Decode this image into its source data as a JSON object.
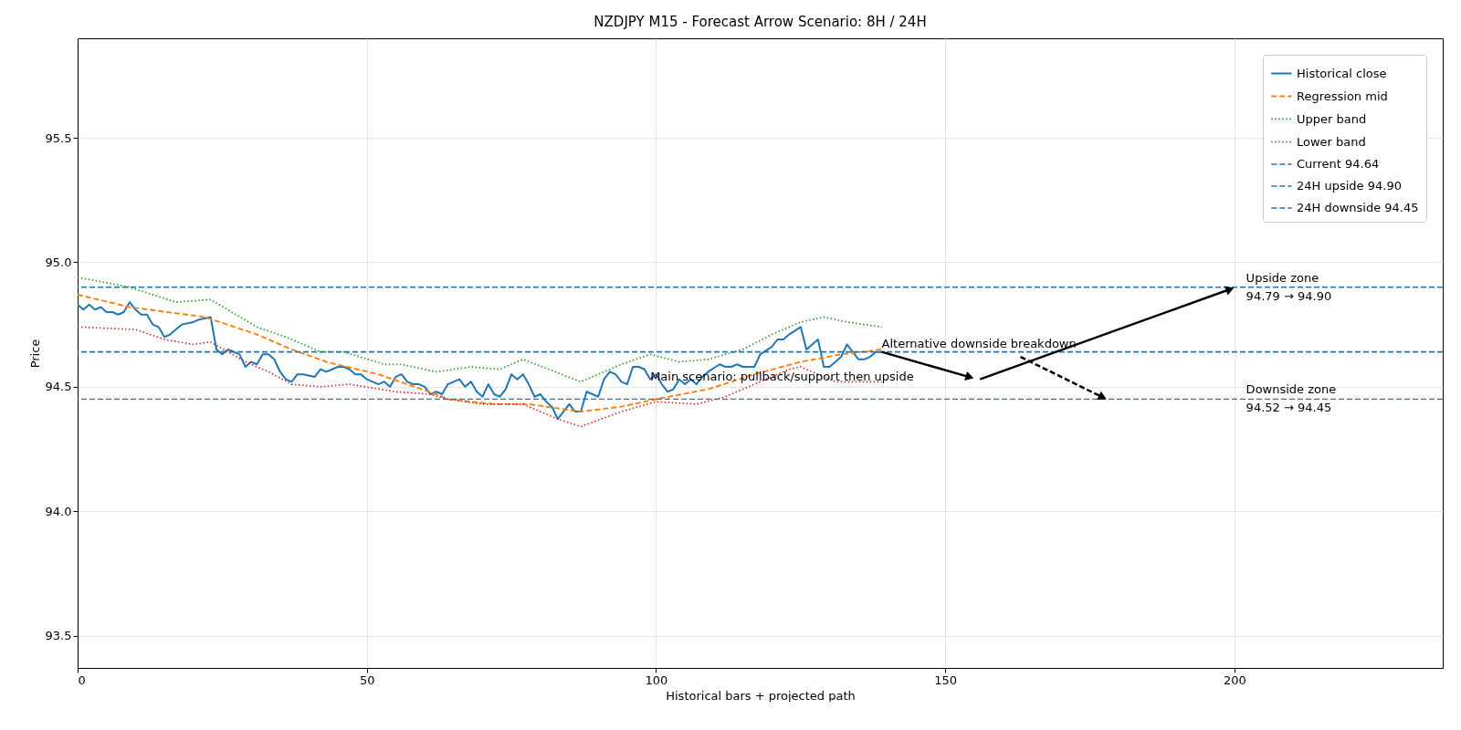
{
  "chart_data": {
    "type": "line",
    "title": "NZDJPY M15 - Forecast Arrow Scenario: 8H / 24H",
    "xlabel": "Historical bars + projected path",
    "ylabel": "Price",
    "xlim": [
      0,
      236
    ],
    "xticks": [
      0,
      50,
      100,
      150,
      200
    ],
    "ylim": [
      93.37,
      95.9
    ],
    "yticks": [
      93.5,
      {
        "value": 94,
        "label": "94.0"
      },
      94.5,
      {
        "value": 95,
        "label": "95.0"
      },
      95.5
    ],
    "grid": true,
    "legend": "top right",
    "series": [
      {
        "name": "Historical close",
        "color": "#1f77b4",
        "line_style": "solid",
        "x": [
          0,
          1,
          2,
          3,
          4,
          5,
          6,
          7,
          8,
          9,
          10,
          11,
          12,
          13,
          14,
          15,
          16,
          17,
          18,
          20,
          21,
          23,
          24,
          25,
          26,
          27,
          28,
          29,
          30,
          31,
          32,
          33,
          34,
          35,
          36,
          37,
          38,
          39,
          41,
          42,
          43,
          44,
          45,
          46,
          47,
          48,
          49,
          50,
          51,
          52,
          53,
          54,
          55,
          56,
          57,
          58,
          59,
          60,
          61,
          62,
          63,
          64,
          65,
          66,
          67,
          68,
          69,
          70,
          71,
          72,
          73,
          74,
          75,
          76,
          77,
          78,
          79,
          80,
          81,
          82,
          83,
          84,
          85,
          86,
          87,
          88,
          89,
          90,
          91,
          92,
          93,
          94,
          95,
          96,
          97,
          98,
          99,
          100,
          101,
          102,
          103,
          104,
          105,
          106,
          107,
          108,
          109,
          111,
          112,
          113,
          114,
          115,
          116,
          117,
          118,
          120,
          121,
          122,
          123,
          125,
          126,
          127,
          128,
          129,
          130,
          132,
          133,
          134,
          135,
          136,
          137,
          138,
          139
        ],
        "values": [
          94.83,
          94.81,
          94.83,
          94.81,
          94.82,
          94.8,
          94.8,
          94.79,
          94.8,
          94.84,
          94.81,
          94.79,
          94.79,
          94.75,
          94.74,
          94.7,
          94.71,
          94.73,
          94.75,
          94.76,
          94.77,
          94.78,
          94.65,
          94.63,
          94.65,
          94.64,
          94.63,
          94.58,
          94.6,
          94.59,
          94.63,
          94.63,
          94.61,
          94.56,
          94.53,
          94.52,
          94.55,
          94.55,
          94.54,
          94.57,
          94.56,
          94.57,
          94.58,
          94.58,
          94.57,
          94.55,
          94.55,
          94.53,
          94.52,
          94.51,
          94.52,
          94.5,
          94.54,
          94.55,
          94.52,
          94.51,
          94.51,
          94.5,
          94.47,
          94.48,
          94.47,
          94.51,
          94.52,
          94.53,
          94.5,
          94.52,
          94.48,
          94.46,
          94.51,
          94.47,
          94.46,
          94.49,
          94.55,
          94.53,
          94.55,
          94.51,
          94.46,
          94.47,
          94.44,
          94.42,
          94.37,
          94.4,
          94.43,
          94.4,
          94.4,
          94.48,
          94.47,
          94.46,
          94.53,
          94.56,
          94.55,
          94.52,
          94.51,
          94.58,
          94.58,
          94.57,
          94.53,
          94.55,
          94.51,
          94.48,
          94.49,
          94.53,
          94.51,
          94.53,
          94.51,
          94.54,
          94.56,
          94.59,
          94.58,
          94.58,
          94.59,
          94.58,
          94.58,
          94.58,
          94.63,
          94.66,
          94.69,
          94.69,
          94.71,
          94.74,
          94.65,
          94.67,
          94.69,
          94.58,
          94.58,
          94.62,
          94.67,
          94.64,
          94.61,
          94.61,
          94.62,
          94.64,
          94.64
        ]
      },
      {
        "name": "Regression mid",
        "color": "#ff7f0e",
        "line_style": "dashed",
        "x": [
          0,
          9,
          22,
          31,
          37,
          43,
          52,
          62,
          64,
          72,
          78,
          87,
          94,
          100,
          109,
          117,
          125,
          132,
          139
        ],
        "values": [
          94.87,
          94.82,
          94.78,
          94.71,
          94.65,
          94.6,
          94.55,
          94.47,
          94.45,
          94.43,
          94.43,
          94.4,
          94.42,
          94.45,
          94.49,
          94.55,
          94.6,
          94.63,
          94.65
        ]
      },
      {
        "name": "Upper band",
        "color": "#2ca02c",
        "line_style": "dotted",
        "x": [
          0,
          9,
          17,
          23,
          31,
          36,
          42,
          46,
          53,
          56,
          62,
          68,
          73,
          77,
          87,
          94,
          99,
          104,
          109,
          115,
          120,
          125,
          129,
          133,
          139
        ],
        "values": [
          94.94,
          94.9,
          94.84,
          94.85,
          94.74,
          94.7,
          94.64,
          94.64,
          94.59,
          94.59,
          94.56,
          94.58,
          94.57,
          94.61,
          94.52,
          94.59,
          94.63,
          94.6,
          94.61,
          94.65,
          94.71,
          94.76,
          94.78,
          94.76,
          94.74
        ]
      },
      {
        "name": "Lower band",
        "color": "#d62728",
        "line_style": "dotted",
        "x": [
          0,
          10,
          15,
          20,
          23,
          29,
          33,
          37,
          42,
          47,
          55,
          61,
          64,
          70,
          77,
          83,
          87,
          94,
          100,
          107,
          112,
          117,
          123,
          125,
          131,
          139
        ],
        "values": [
          94.74,
          94.73,
          94.69,
          94.67,
          94.68,
          94.6,
          94.56,
          94.51,
          94.5,
          94.51,
          94.48,
          94.47,
          94.45,
          94.43,
          94.43,
          94.37,
          94.34,
          94.4,
          94.44,
          94.43,
          94.46,
          94.51,
          94.57,
          94.58,
          94.52,
          94.52
        ]
      },
      {
        "color": "#000000",
        "line_style": "solid",
        "x": [
          139,
          154
        ],
        "values": [
          94.64,
          94.54
        ]
      },
      {
        "color": "#000000",
        "line_style": "solid",
        "x": [
          156,
          199
        ],
        "values": [
          94.53,
          94.89
        ]
      },
      {
        "color": "#000000",
        "line_style": "dashed",
        "x": [
          163,
          177
        ],
        "values": [
          94.62,
          94.46
        ]
      }
    ],
    "ref_lines": [
      {
        "axis": "y",
        "value": 94.64,
        "label": "Current 94.64",
        "color": "#1f77b4",
        "line_style": "dashed"
      },
      {
        "axis": "y",
        "value": 94.9,
        "label": "24H upside 94.90",
        "color": "#1f77b4",
        "line_style": "dashed"
      },
      {
        "axis": "y",
        "value": 94.45,
        "label": "24H downside 94.45",
        "color": "#1f77b4",
        "line_style": "dashed"
      }
    ],
    "annotations": [
      {
        "text": "Main scenario: pullback/support then upside",
        "x": 99,
        "y": 94.54
      },
      {
        "text": "Alternative downside breakdown",
        "x": 139,
        "y": 94.67
      },
      {
        "text": "Upside zone\n94.79 → 94.90",
        "x": 202,
        "y": 94.9
      },
      {
        "text": "Downside zone\n94.52 → 94.45",
        "x": 202,
        "y": 94.45
      }
    ]
  }
}
